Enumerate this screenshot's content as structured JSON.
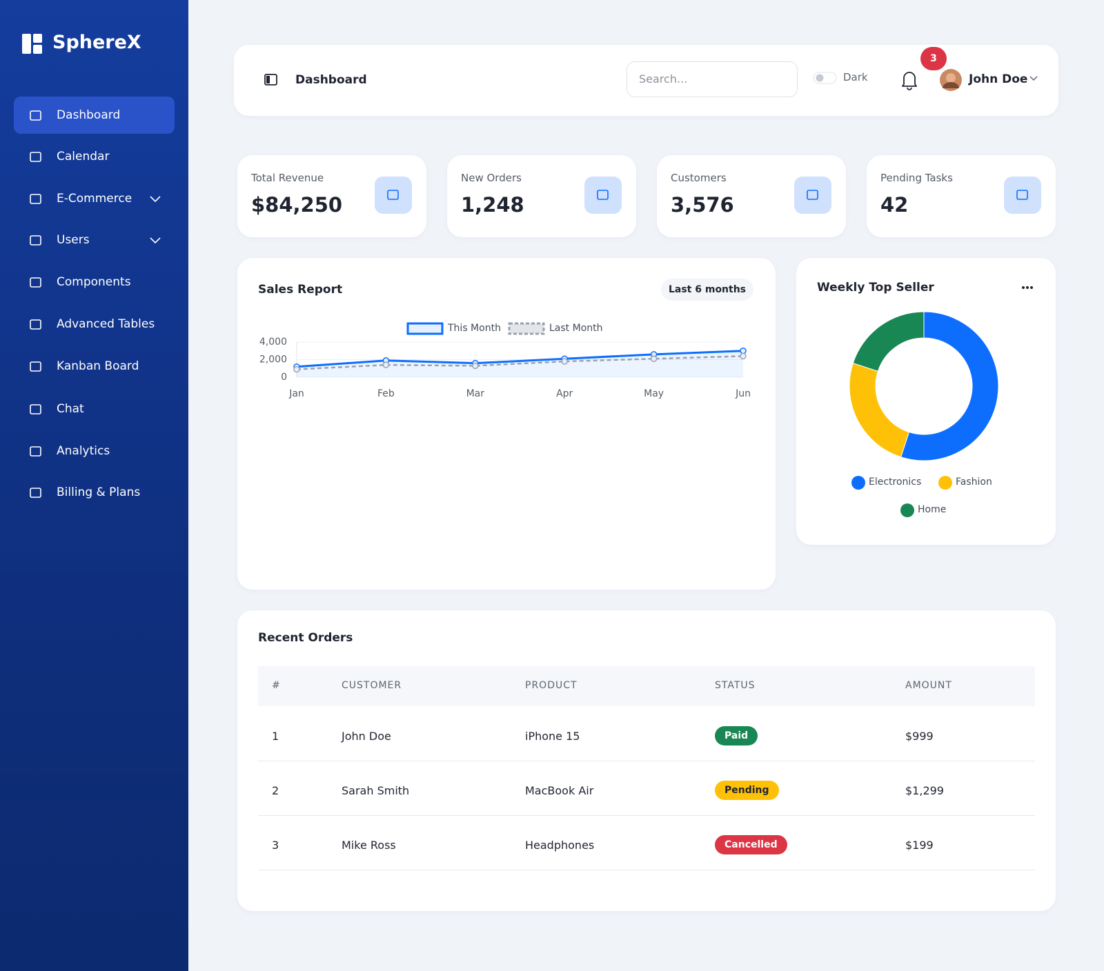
{
  "sidebar": {
    "brand": "SphereX",
    "menu": [
      "Dashboard",
      "Calendar",
      "E-Commerce",
      "Users",
      "Components",
      "Advanced Tables",
      "Kanban Board",
      "Chat",
      "Analytics",
      "Billing & Plans"
    ]
  },
  "header": {
    "title": "Dashboard",
    "search_placeholder": "Search...",
    "theme_toggle": "Dark",
    "notification_count": 3,
    "user_name": "John Doe"
  },
  "stats": [
    {
      "label": "Total Revenue",
      "value": "$84,250"
    },
    {
      "label": "New Orders",
      "value": "1,248"
    },
    {
      "label": "Customers",
      "value": "3,576"
    },
    {
      "label": "Pending Tasks",
      "value": "42"
    }
  ],
  "sales_report": {
    "period": "Last 6 months"
  },
  "chart_data": [
    {
      "type": "line",
      "title": "Sales Report",
      "categories": [
        "Jan",
        "Feb",
        "Mar",
        "Apr",
        "May",
        "Jun"
      ],
      "series": [
        {
          "name": "This Month",
          "color": "#0d6efd",
          "values": [
            1200,
            1900,
            1600,
            2100,
            2600,
            3000
          ]
        },
        {
          "name": "Last Month",
          "color": "#9aa3ad",
          "values": [
            900,
            1400,
            1300,
            1800,
            2100,
            2400
          ]
        }
      ],
      "ylim": [
        0,
        4000
      ],
      "yticks": [
        0,
        {
          "value": 2000,
          "label": "2,000"
        },
        {
          "value": 4000,
          "label": "4,000"
        }
      ]
    },
    {
      "type": "pie",
      "title": "Weekly Top Seller",
      "categories": [
        "Electronics",
        "Fashion",
        "Home"
      ],
      "values": [
        55,
        25,
        20
      ],
      "colors": [
        "#0d6efd",
        "#ffc107",
        "#198754"
      ]
    }
  ],
  "recent_orders": {
    "title": "Recent Orders",
    "columns": [
      "#",
      "CUSTOMER",
      "PRODUCT",
      "STATUS",
      "AMOUNT"
    ],
    "rows": [
      [
        "1",
        "John Doe",
        "iPhone 15",
        "Paid",
        "$999"
      ],
      [
        "2",
        "Sarah Smith",
        "MacBook Air",
        "Pending",
        "$1,299"
      ],
      [
        "3",
        "Mike Ross",
        "Headphones",
        "Cancelled",
        "$199"
      ]
    ]
  }
}
